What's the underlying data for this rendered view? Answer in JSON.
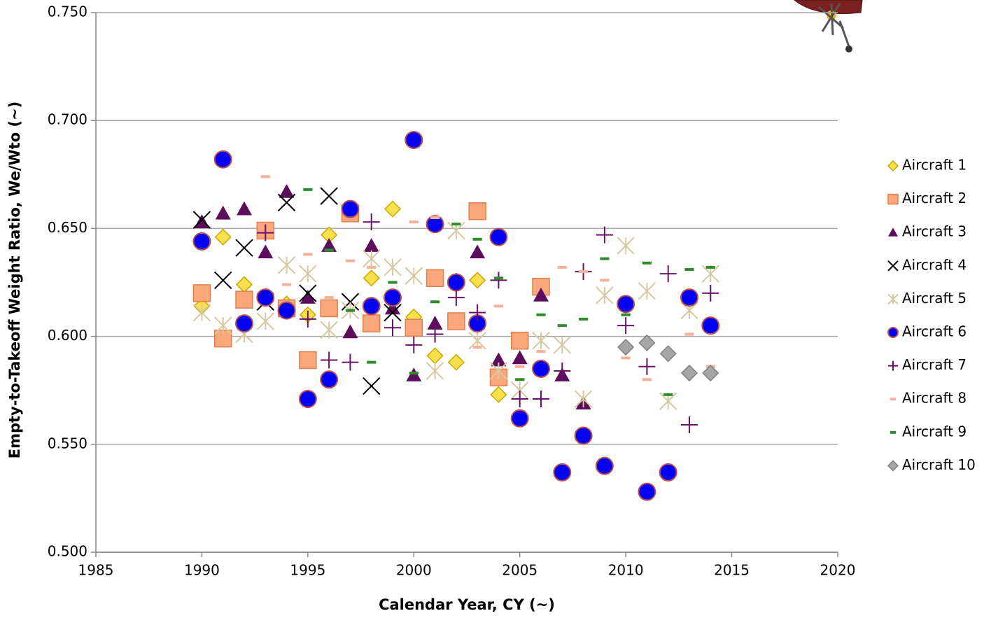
{
  "chart_data": {
    "type": "scatter",
    "x_label": "Calendar Year, CY (~)",
    "y_label": "Empty-to-Takeoff Weight Ratio, We/Wto (~)",
    "xlim": [
      1985,
      2020
    ],
    "xticks": [
      1985,
      1990,
      1995,
      2000,
      2005,
      2010,
      2015,
      2020
    ],
    "ylim": [
      0.5,
      0.75
    ],
    "yticks": [
      {
        "value": 0.5,
        "label": "0.500"
      },
      {
        "value": 0.55,
        "label": "0.550"
      },
      {
        "value": 0.6,
        "label": "0.600"
      },
      {
        "value": 0.65,
        "label": "0.650"
      },
      {
        "value": 0.7,
        "label": "0.700"
      },
      {
        "value": 0.75,
        "label": "0.750"
      }
    ],
    "grid": true,
    "legend": "right",
    "series": [
      {
        "name": "Aircraft 1",
        "marker": "diamond",
        "color": "#f7e04b",
        "x": [
          1990,
          1991,
          1992,
          1994,
          1995,
          1996,
          1998,
          1999,
          2000,
          2001,
          2002,
          2003,
          2004
        ],
        "values": [
          0.614,
          0.646,
          0.624,
          0.615,
          0.61,
          0.647,
          0.627,
          0.659,
          0.609,
          0.591,
          0.588,
          0.626,
          0.573
        ]
      },
      {
        "name": "Aircraft 2",
        "marker": "square",
        "color": "#f9a77b",
        "x": [
          1990,
          1991,
          1992,
          1993,
          1994,
          1995,
          1996,
          1997,
          1998,
          2000,
          2001,
          2002,
          2003,
          2004,
          2005,
          2006
        ],
        "values": [
          0.62,
          0.599,
          0.617,
          0.649,
          0.613,
          0.589,
          0.613,
          0.657,
          0.606,
          0.604,
          0.627,
          0.607,
          0.658,
          0.581,
          0.598,
          0.623
        ]
      },
      {
        "name": "Aircraft 3",
        "marker": "triangle",
        "color": "#5c0e5c",
        "x": [
          1990,
          1991,
          1992,
          1993,
          1994,
          1995,
          1996,
          1997,
          1998,
          1999,
          2000,
          2001,
          2002,
          2003,
          2004,
          2005,
          2006,
          2007,
          2008
        ],
        "values": [
          0.653,
          0.657,
          0.659,
          0.639,
          0.667,
          0.618,
          0.642,
          0.602,
          0.642,
          0.613,
          0.582,
          0.606,
          0.626,
          0.639,
          0.589,
          0.59,
          0.619,
          0.582,
          0.569
        ]
      },
      {
        "name": "Aircraft 4",
        "marker": "x",
        "color": "#000000",
        "x": [
          1990,
          1991,
          1992,
          1993,
          1994,
          1995,
          1996,
          1997,
          1998,
          1999
        ],
        "values": [
          0.654,
          0.626,
          0.641,
          0.616,
          0.662,
          0.62,
          0.665,
          0.616,
          0.577,
          0.611
        ]
      },
      {
        "name": "Aircraft 5",
        "marker": "star",
        "color": "#d8c8a0",
        "x": [
          1990,
          1991,
          1992,
          1993,
          1994,
          1995,
          1996,
          1997,
          1998,
          1999,
          2000,
          2001,
          2002,
          2003,
          2004,
          2005,
          2006,
          2007,
          2008,
          2009,
          2010,
          2011,
          2012,
          2013,
          2014
        ],
        "values": [
          0.611,
          0.605,
          0.601,
          0.607,
          0.633,
          0.629,
          0.603,
          0.612,
          0.636,
          0.632,
          0.628,
          0.584,
          0.649,
          0.598,
          0.584,
          0.575,
          0.598,
          0.596,
          0.571,
          0.619,
          0.642,
          0.621,
          0.57,
          0.612,
          0.629
        ]
      },
      {
        "name": "Aircraft 6",
        "marker": "circle",
        "color": "#0000f5",
        "x": [
          1990,
          1991,
          1992,
          1993,
          1994,
          1995,
          1996,
          1997,
          1998,
          1999,
          2000,
          2001,
          2002,
          2003,
          2004,
          2005,
          2006,
          2007,
          2008,
          2009,
          2010,
          2011,
          2012,
          2013,
          2014
        ],
        "values": [
          0.644,
          0.682,
          0.606,
          0.618,
          0.612,
          0.571,
          0.58,
          0.659,
          0.614,
          0.618,
          0.691,
          0.652,
          0.625,
          0.606,
          0.646,
          0.562,
          0.585,
          0.537,
          0.554,
          0.54,
          0.615,
          0.528,
          0.537,
          0.618,
          0.605
        ]
      },
      {
        "name": "Aircraft 7",
        "marker": "plus",
        "color": "#6b1068",
        "x": [
          1993,
          1995,
          1996,
          1997,
          1998,
          1999,
          2000,
          2001,
          2002,
          2003,
          2004,
          2005,
          2006,
          2007,
          2008,
          2009,
          2010,
          2011,
          2012,
          2013,
          2014
        ],
        "values": [
          0.648,
          0.608,
          0.589,
          0.588,
          0.653,
          0.604,
          0.596,
          0.601,
          0.618,
          0.611,
          0.626,
          0.571,
          0.571,
          0.584,
          0.63,
          0.647,
          0.605,
          0.586,
          0.629,
          0.559,
          0.62
        ]
      },
      {
        "name": "Aircraft 8",
        "marker": "dash",
        "color": "#f4b09a",
        "x": [
          1993,
          1994,
          1995,
          1996,
          1997,
          1998,
          2000,
          2001,
          2003,
          2004,
          2005,
          2006,
          2007,
          2008,
          2009,
          2010,
          2011,
          2013,
          2014
        ],
        "values": [
          0.674,
          0.624,
          0.638,
          0.618,
          0.635,
          0.632,
          0.653,
          0.655,
          0.595,
          0.614,
          0.586,
          0.593,
          0.632,
          0.63,
          0.626,
          0.59,
          0.58,
          0.601,
          0.586
        ]
      },
      {
        "name": "Aircraft 9",
        "marker": "dash",
        "color": "#2e8b2e",
        "x": [
          1995,
          1996,
          1997,
          1998,
          1999,
          2000,
          2001,
          2002,
          2003,
          2004,
          2005,
          2006,
          2007,
          2008,
          2009,
          2010,
          2011,
          2012,
          2013,
          2014
        ],
        "values": [
          0.668,
          0.64,
          0.612,
          0.588,
          0.625,
          0.583,
          0.616,
          0.652,
          0.645,
          0.627,
          0.58,
          0.61,
          0.605,
          0.608,
          0.636,
          0.61,
          0.634,
          0.573,
          0.631,
          0.632
        ]
      },
      {
        "name": "Aircraft 10",
        "marker": "diamond",
        "color": "#a6a6a6",
        "x": [
          2010,
          2011,
          2012,
          2013,
          2014
        ],
        "values": [
          0.595,
          0.597,
          0.592,
          0.583,
          0.583
        ]
      }
    ]
  }
}
